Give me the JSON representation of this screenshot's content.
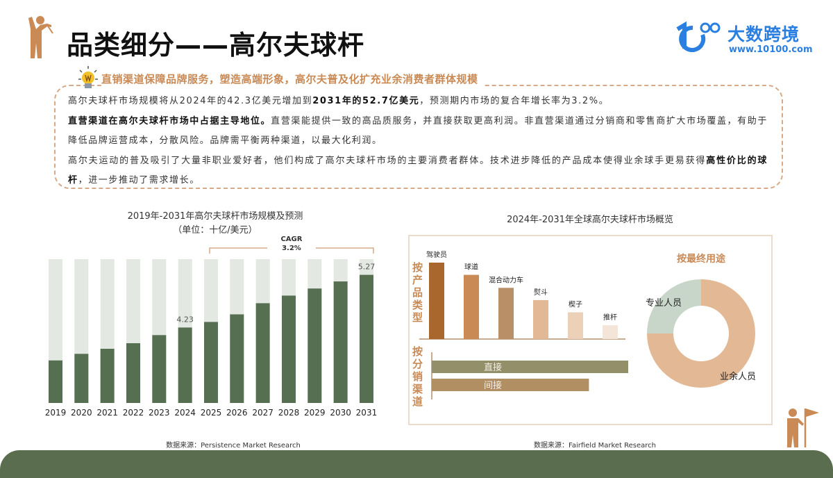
{
  "header": {
    "title": "品类细分——高尔夫球杆",
    "logo_brand": "大数跨境",
    "logo_url": "www.10100.com",
    "logo_mark": "1C00"
  },
  "headline": "直销渠道保障品牌服务，塑造高端形象，高尔夫普及化扩充业余消费者群体规模",
  "paragraphs": [
    {
      "a": "高尔夫球杆市场规模将从2024年的42.3亿美元增加到",
      "b": "2031年的52.7亿美元",
      "c": "，预测期内市场的复合年增长率为3.2%。"
    },
    {
      "a": "",
      "b": "直营渠道在高尔夫球杆市场中占据主导地位。",
      "c": "直营渠能提供一致的高品质服务，并直接获取更高利润。非直营渠道通过分销商和零售商扩大市场覆盖，有助于降低品牌运营成本，分散风险。品牌需平衡两种渠道，以最大化利润。"
    },
    {
      "a": "高尔夫运动的普及吸引了大量非职业爱好者，他们构成了高尔夫球杆市场的主要消费者群体。技术进步降低的产品成本使得业余球手更易获得",
      "b": "高性价比的球杆",
      "c": "，进一步推动了需求增长。"
    }
  ],
  "colors": {
    "accent": "#c98a55",
    "bar_bg": "#e3e8e2",
    "bar_fg": "#566f50",
    "band": "#5a6e4f",
    "brand": "#2a7fe0"
  },
  "icons": [
    "golfer-swing-icon",
    "lightbulb-icon",
    "golfer-flag-icon"
  ],
  "chart_data": [
    {
      "type": "bar",
      "title": "2019年-2031年高尔夫球杆市场规模及预测",
      "subtitle": "（单位：十亿/美元）",
      "categories": [
        "2019",
        "2020",
        "2021",
        "2022",
        "2023",
        "2024",
        "2025",
        "2026",
        "2027",
        "2028",
        "2029",
        "2030",
        "2031"
      ],
      "values": [
        3.58,
        3.71,
        3.81,
        3.92,
        4.08,
        4.23,
        4.34,
        4.49,
        4.71,
        4.86,
        5.0,
        5.14,
        5.27
      ],
      "data_labels": {
        "2024": "4.23",
        "2031": "5.27"
      },
      "ylim": [
        2.74,
        5.58
      ],
      "annotation": {
        "label": "CAGR",
        "value": "3.2%",
        "from": "2025",
        "to": "2031"
      },
      "source": "数据来源：Persistence Market Research"
    },
    {
      "type": "bar",
      "title": "2024年-2031年全球高尔夫球杆市场概览",
      "product": {
        "label": "按产品类型",
        "categories": [
          "驾驶员",
          "球道",
          "混合动力车",
          "熨斗",
          "楔子",
          "推杆"
        ],
        "values": [
          1,
          0.84,
          0.67,
          0.51,
          0.35,
          0.18
        ],
        "colors": [
          "#a9672e",
          "#c98a55",
          "#b98f68",
          "#e2b895",
          "#ecd1b8",
          "#f3e5d8"
        ]
      },
      "channel": {
        "label": "按分销渠道",
        "categories": [
          "直接",
          "间接"
        ],
        "values": [
          1,
          0.8
        ],
        "colors": [
          "#939069",
          "#b18f62"
        ]
      },
      "end_use": {
        "type": "pie",
        "label": "按最终用途",
        "categories": [
          "专业人员",
          "业余人员"
        ],
        "values": [
          0.25,
          0.75
        ],
        "colors": [
          "#c8d5c9",
          "#e3b995"
        ]
      },
      "source": "数据来源：Fairfield Market Research"
    }
  ]
}
